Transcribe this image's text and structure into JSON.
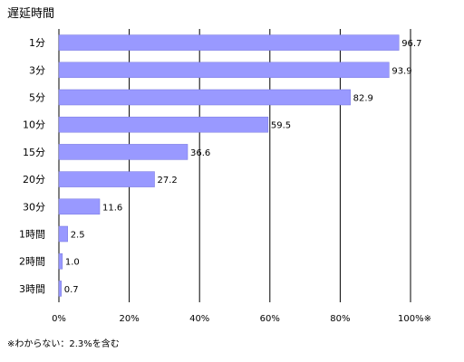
{
  "chart_data": {
    "type": "bar",
    "orientation": "horizontal",
    "title": "遅延時間",
    "categories": [
      "1分",
      "3分",
      "5分",
      "10分",
      "15分",
      "20分",
      "30分",
      "1時間",
      "2時間",
      "3時間"
    ],
    "values": [
      96.7,
      93.9,
      82.9,
      59.5,
      36.6,
      27.2,
      11.6,
      2.5,
      1.0,
      0.7
    ],
    "value_labels": [
      "96.7",
      "93.9",
      "82.9",
      "59.5",
      "36.6",
      "27.2",
      "11.6",
      "2.5",
      "1.0",
      "0.7"
    ],
    "xlim": [
      0,
      100
    ],
    "x_ticks": [
      "0%",
      "20%",
      "40%",
      "60%",
      "80%",
      "100%※"
    ],
    "grid": true,
    "bar_color": "#9999ff",
    "note": "※わからない：2.3%を含む"
  }
}
